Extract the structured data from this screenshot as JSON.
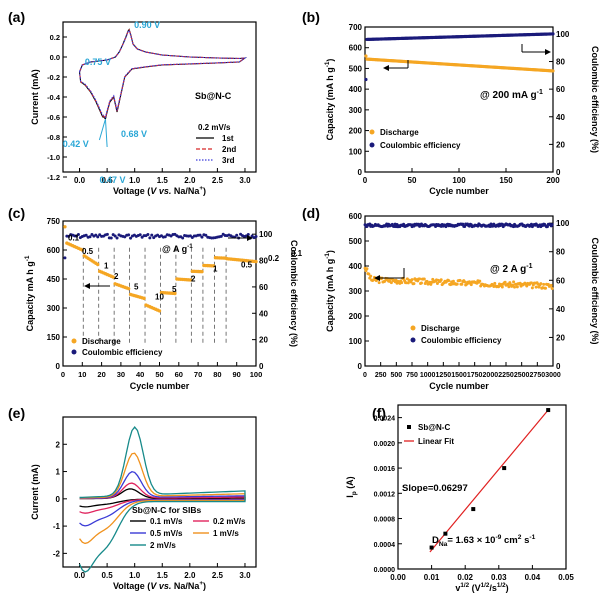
{
  "chart_data": [
    {
      "panel": "(a)",
      "type": "line",
      "xlabel_pre": "Voltage (",
      "xlabel_it": "V vs.",
      "xlabel_post": " Na/Na",
      "xlabel_sup": "+",
      "xlabel_end": ")",
      "ylabel": "Current (mA)",
      "xlim": [
        -0.3,
        3.2
      ],
      "ylim": [
        -1.15,
        0.35
      ],
      "xticks": [
        "0.0",
        "0.5",
        "1.0",
        "1.5",
        "2.0",
        "2.5",
        "3.0"
      ],
      "yticks": [
        "-1.2",
        "-1.0",
        "-0.8",
        "-0.6",
        "-0.4",
        "-0.2",
        "0.0",
        "0.2"
      ],
      "sample": "Sb@N-C",
      "rate": "0.2 mV/s",
      "series": [
        {
          "name": "1st",
          "color": "#000000"
        },
        {
          "name": "2nd",
          "color": "#d62728"
        },
        {
          "name": "3rd",
          "color": "#3b3bdb"
        }
      ],
      "annotations": [
        {
          "text": "0.90 V",
          "x": 0.9,
          "y": 0.27
        },
        {
          "text": "0.75 V",
          "x": 0.75,
          "y": 0.0
        },
        {
          "text": "0.68 V",
          "x": 0.68,
          "y": -0.68
        },
        {
          "text": "0.42 V",
          "x": 0.42,
          "y": -0.6
        },
        {
          "text": "0.47 V",
          "x": 0.47,
          "y": -0.86
        }
      ],
      "annotation_color": "#2aa7d6",
      "curve": [
        [
          0.0,
          -0.15
        ],
        [
          0.05,
          -0.08
        ],
        [
          0.2,
          -0.05
        ],
        [
          0.5,
          -0.03
        ],
        [
          0.65,
          0.0
        ],
        [
          0.72,
          0.05
        ],
        [
          0.78,
          0.12
        ],
        [
          0.84,
          0.2
        ],
        [
          0.88,
          0.26
        ],
        [
          0.9,
          0.275
        ],
        [
          0.93,
          0.22
        ],
        [
          0.97,
          0.13
        ],
        [
          1.05,
          0.08
        ],
        [
          1.2,
          0.05
        ],
        [
          1.5,
          0.02
        ],
        [
          2.0,
          0.0
        ],
        [
          2.5,
          -0.01
        ],
        [
          2.9,
          -0.015
        ],
        [
          3.0,
          -0.01
        ],
        [
          2.9,
          -0.05
        ],
        [
          2.5,
          -0.06
        ],
        [
          2.0,
          -0.07
        ],
        [
          1.5,
          -0.08
        ],
        [
          1.2,
          -0.1
        ],
        [
          0.95,
          -0.12
        ],
        [
          0.82,
          -0.2
        ],
        [
          0.72,
          -0.45
        ],
        [
          0.68,
          -0.55
        ],
        [
          0.62,
          -0.4
        ],
        [
          0.55,
          -0.45
        ],
        [
          0.5,
          -0.55
        ],
        [
          0.47,
          -0.62
        ],
        [
          0.44,
          -0.6
        ],
        [
          0.42,
          -0.6
        ],
        [
          0.38,
          -0.55
        ],
        [
          0.3,
          -0.45
        ],
        [
          0.2,
          -0.35
        ],
        [
          0.1,
          -0.28
        ],
        [
          0.02,
          -0.25
        ],
        [
          0.0,
          -0.15
        ]
      ]
    },
    {
      "panel": "(b)",
      "type": "scatter",
      "xlabel": "Cycle number",
      "ylabel": "Capacity (mA h g",
      "ylabel_sup": "-1",
      "ylabel_end": ")",
      "y2label": "Coulombic efficiency (%)",
      "xlim": [
        0,
        200
      ],
      "ylim": [
        0,
        700
      ],
      "y2lim": [
        0,
        105
      ],
      "xticks": [
        "0",
        "50",
        "100",
        "150",
        "200"
      ],
      "yticks": [
        "0",
        "100",
        "200",
        "300",
        "400",
        "500",
        "600",
        "700"
      ],
      "y2ticks": [
        "0",
        "20",
        "40",
        "60",
        "80",
        "100"
      ],
      "condition_pre": "@ 200 mA g",
      "condition_sup": "-1",
      "discharge": {
        "x": [
          1,
          2,
          200
        ],
        "y": [
          560,
          545,
          488
        ]
      },
      "efficiency": {
        "x": [
          1,
          2,
          200
        ],
        "y": [
          67,
          96,
          100
        ]
      },
      "legend": [
        "Discharge",
        "Coulombic efficiency"
      ]
    },
    {
      "panel": "(c)",
      "type": "scatter",
      "xlabel": "Cycle number",
      "ylabel": "Capacity mA h g",
      "ylabel_sup": "-1",
      "y2label": "Coulombic efficiency (%)",
      "xlim": [
        0,
        100
      ],
      "ylim": [
        0,
        750
      ],
      "y2lim": [
        0,
        110
      ],
      "xticks": [
        "0",
        "10",
        "20",
        "30",
        "40",
        "50",
        "60",
        "70",
        "80",
        "90",
        "100"
      ],
      "yticks": [
        "0",
        "150",
        "300",
        "450",
        "600",
        "750"
      ],
      "y2ticks": [
        "0",
        "20",
        "40",
        "60",
        "80",
        "100"
      ],
      "condition": "@  A g",
      "condition_sup": "-1",
      "rate_labels": [
        "0.1",
        "0.5",
        "1",
        "2",
        "5",
        "10",
        "5",
        "2",
        "1",
        "0.5",
        "0.2",
        "0.1"
      ],
      "segments": [
        {
          "x0": 1,
          "x1": 10,
          "start": 640,
          "end": 600
        },
        {
          "x0": 11,
          "x1": 18,
          "start": 570,
          "end": 525
        },
        {
          "x0": 19,
          "x1": 26,
          "start": 490,
          "end": 460
        },
        {
          "x0": 27,
          "x1": 34,
          "start": 425,
          "end": 400
        },
        {
          "x0": 35,
          "x1": 42,
          "start": 370,
          "end": 350
        },
        {
          "x0": 43,
          "x1": 50,
          "start": 315,
          "end": 285
        },
        {
          "x0": 51,
          "x1": 58,
          "start": 380,
          "end": 375
        },
        {
          "x0": 59,
          "x1": 66,
          "start": 450,
          "end": 445
        },
        {
          "x0": 67,
          "x1": 72,
          "start": 490,
          "end": 488
        },
        {
          "x0": 73,
          "x1": 78,
          "start": 520,
          "end": 518
        },
        {
          "x0": 79,
          "x1": 84,
          "start": 560,
          "end": 558
        },
        {
          "x0": 85,
          "x1": 100,
          "start": 555,
          "end": 540
        }
      ],
      "first_cycle_capacity": 720,
      "efficiency_level": 100,
      "legend": [
        "Discharge",
        "Coulombic efficiency"
      ]
    },
    {
      "panel": "(d)",
      "type": "scatter",
      "xlabel": "Cycle number",
      "ylabel": "Capacity (mA h g",
      "ylabel_sup": "-1",
      "ylabel_end": ")",
      "y2label": "Coulombic efficiency (%)",
      "xlim": [
        0,
        3000
      ],
      "ylim": [
        0,
        600
      ],
      "y2lim": [
        0,
        105
      ],
      "xticks": [
        "0",
        "250",
        "500",
        "750",
        "1000",
        "1250",
        "1500",
        "1750",
        "2000",
        "2250",
        "2500",
        "2750",
        "3000"
      ],
      "yticks": [
        "0",
        "100",
        "200",
        "300",
        "400",
        "500",
        "600"
      ],
      "y2ticks": [
        "0",
        "20",
        "40",
        "60",
        "80",
        "100"
      ],
      "condition_pre": "@ 2 A g",
      "condition_sup": "-1",
      "discharge": {
        "x": [
          1,
          100,
          3000
        ],
        "y": [
          395,
          345,
          320
        ]
      },
      "efficiency": {
        "x": [
          1,
          3000
        ],
        "y": [
          96,
          99
        ]
      },
      "legend": [
        "Discharge",
        "Coulombic efficiency"
      ]
    },
    {
      "panel": "(e)",
      "type": "line",
      "xlabel_pre": "Voltage (",
      "xlabel_it": "V vs.",
      "xlabel_post": " Na/Na",
      "xlabel_sup": "+",
      "xlabel_end": ")",
      "ylabel": "Current (mA)",
      "xlim": [
        -0.3,
        3.2
      ],
      "ylim": [
        -2.5,
        3.0
      ],
      "xticks": [
        "0.0",
        "0.5",
        "1.0",
        "1.5",
        "2.0",
        "2.5",
        "3.0"
      ],
      "yticks": [
        "-2",
        "-1",
        "0",
        "1",
        "2"
      ],
      "legend_title": "Sb@N-C for SIBs",
      "series": [
        {
          "name": "0.1 mV/s",
          "color": "#000000",
          "peak": 0.35,
          "trough": -0.25,
          "peakx": 0.92
        },
        {
          "name": "0.2 mV/s",
          "color": "#e0245e",
          "peak": 0.55,
          "trough": -0.45,
          "peakx": 0.94
        },
        {
          "name": "0.5 mV/s",
          "color": "#3a3ad6",
          "peak": 0.95,
          "trough": -0.85,
          "peakx": 0.96
        },
        {
          "name": "1 mV/s",
          "color": "#f0921e",
          "peak": 1.6,
          "trough": -1.4,
          "peakx": 0.98
        },
        {
          "name": "2 mV/s",
          "color": "#178a8a",
          "peak": 2.5,
          "trough": -2.3,
          "peakx": 1.0
        }
      ]
    },
    {
      "panel": "(f)",
      "type": "scatter",
      "xlabel_pre": "v",
      "xlabel_sup": "1/2",
      "xlabel_post": " (V",
      "xlabel_sup2": "1/2",
      "xlabel_post2": "/s",
      "xlabel_sup3": "1/2",
      "xlabel_end": ")",
      "ylabel": "I",
      "ylabel_sub": "p",
      "ylabel_end": " (A)",
      "xlim": [
        0.0,
        0.05
      ],
      "ylim": [
        0.0,
        0.0026
      ],
      "xticks": [
        "0.00",
        "0.01",
        "0.02",
        "0.03",
        "0.04",
        "0.05"
      ],
      "yticks": [
        "0.0000",
        "0.0004",
        "0.0008",
        "0.0012",
        "0.0016",
        "0.0020",
        "0.0024"
      ],
      "points": {
        "x": [
          0.01,
          0.0141,
          0.0224,
          0.0316,
          0.0447
        ],
        "y": [
          0.00034,
          0.00056,
          0.00095,
          0.0016,
          0.00252
        ]
      },
      "fit": {
        "x": [
          0.0095,
          0.0447
        ],
        "y": [
          0.00027,
          0.00252
        ]
      },
      "legend": [
        "Sb@N-C",
        "Linear Fit"
      ],
      "slope_text": "Slope=0.06297",
      "dna_main": "D",
      "dna_sub": "Na",
      "dna_value": "= 1.63 × 10",
      "dna_exp": "-9",
      "dna_unit_pre": " cm",
      "dna_unit_sup": "2",
      "dna_unit_post": " s",
      "dna_unit_sup2": "-1"
    }
  ]
}
